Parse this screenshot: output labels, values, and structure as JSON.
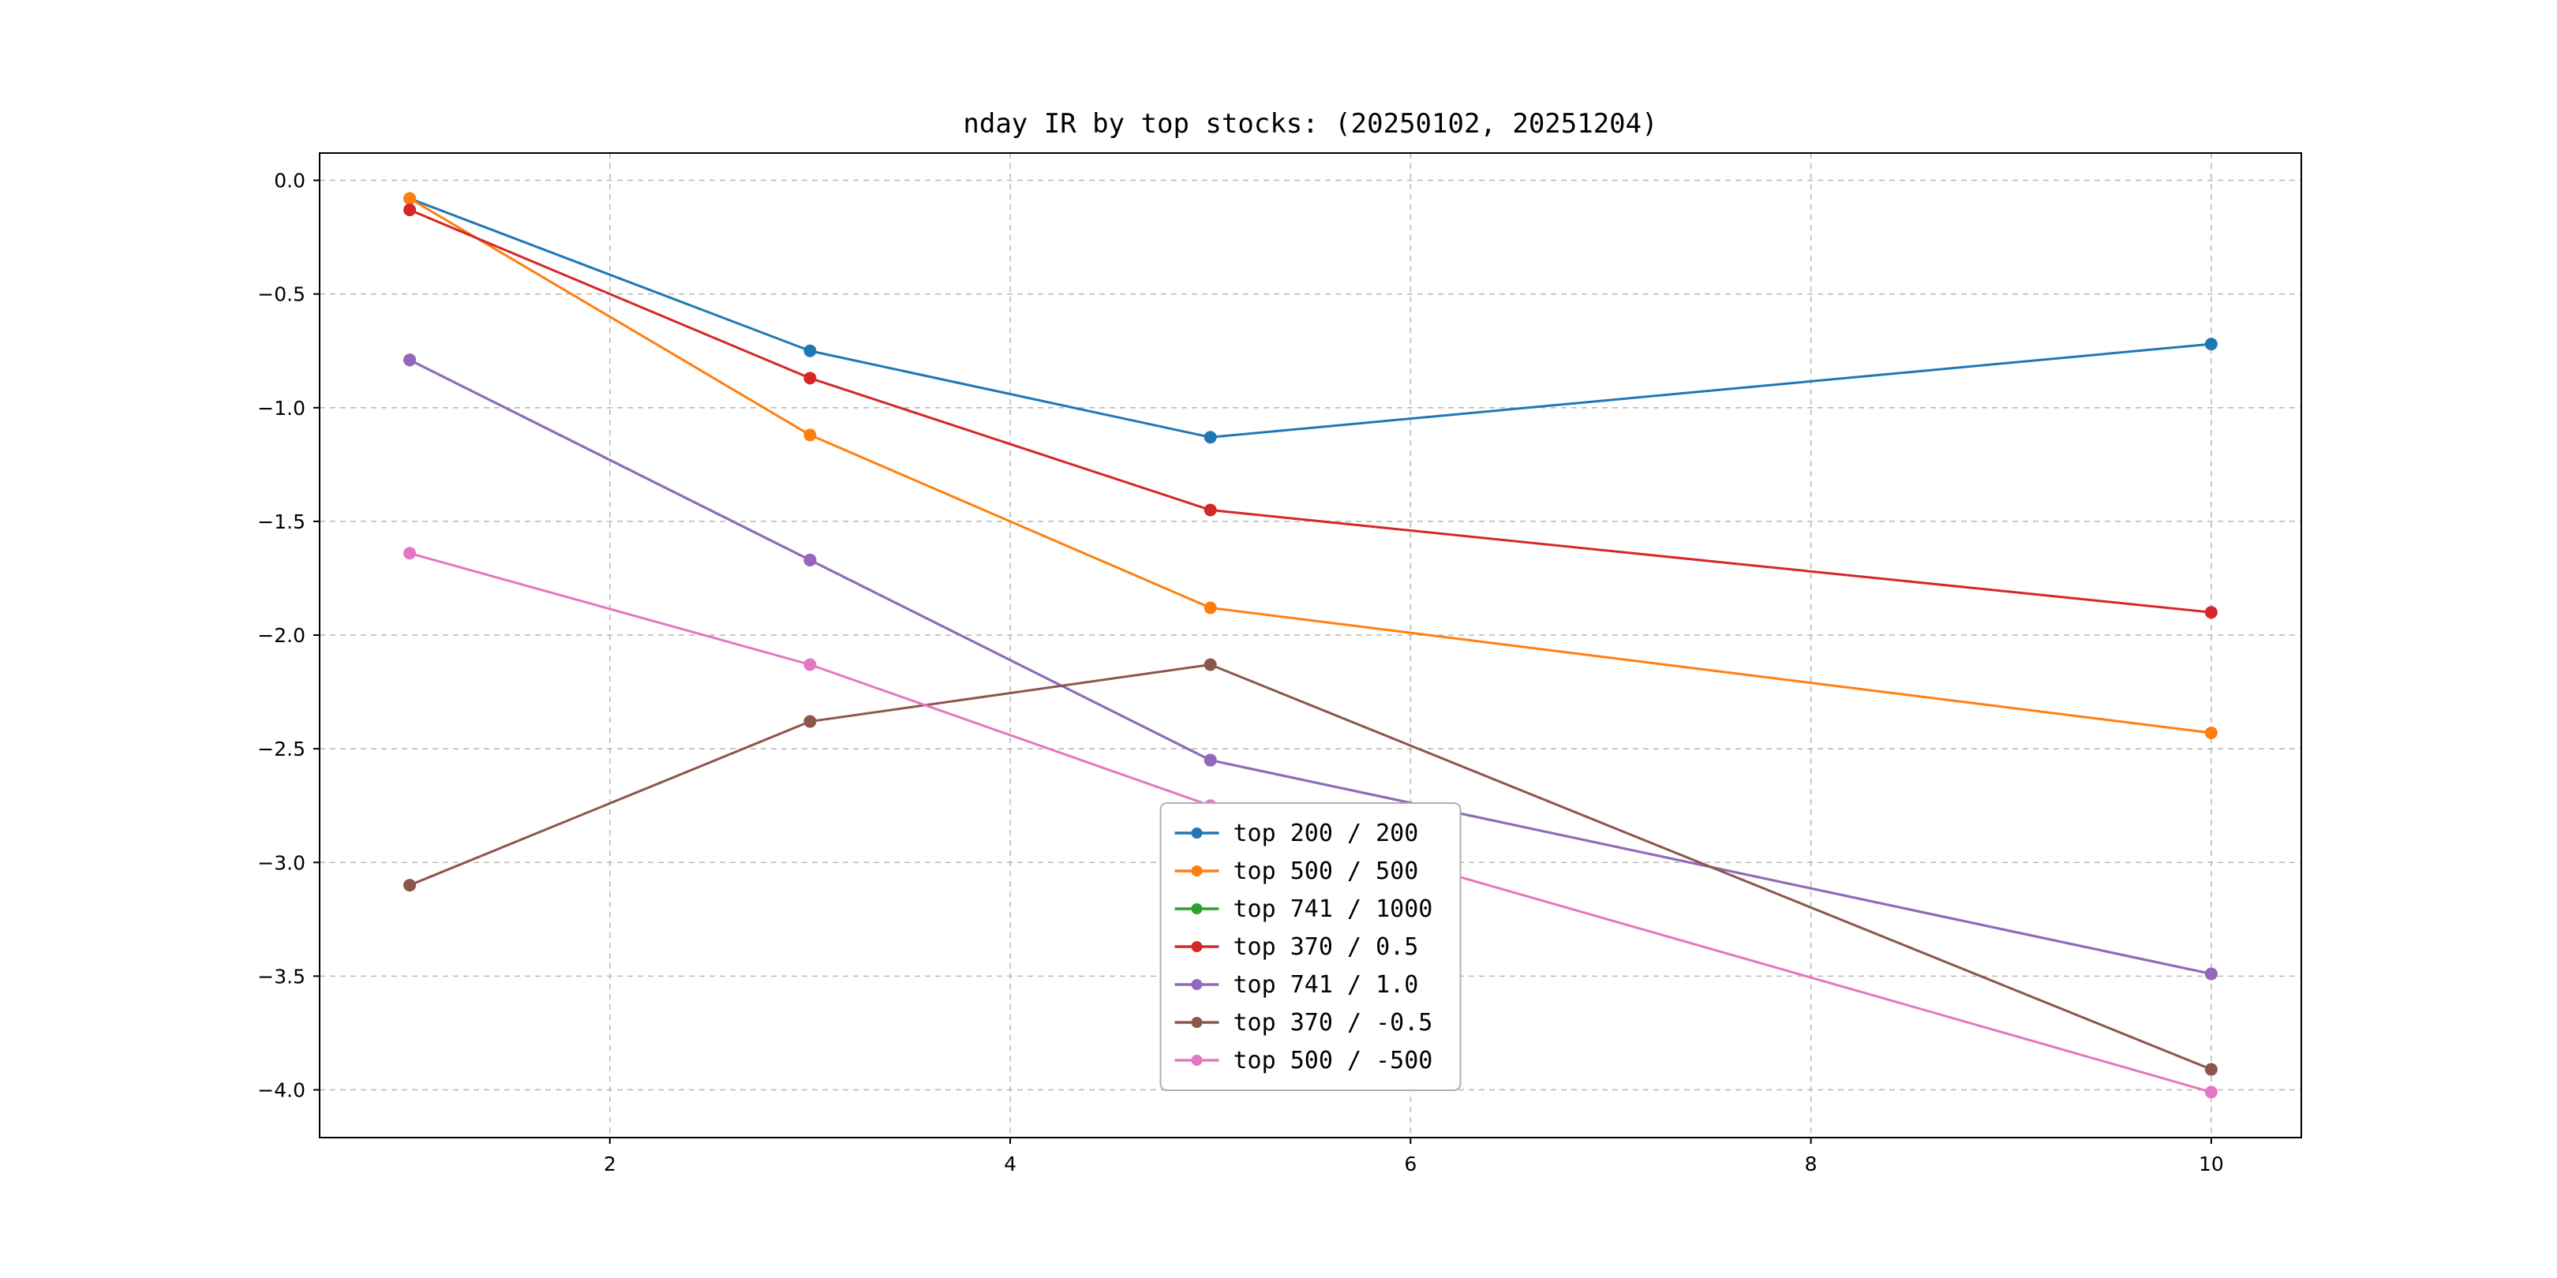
{
  "title": "nday IR by top stocks: (20250102, 20251204)",
  "chart_data": {
    "type": "line",
    "title": "nday IR by top stocks: (20250102, 20251204)",
    "xlabel": "",
    "ylabel": "",
    "x": [
      1,
      3,
      5,
      10
    ],
    "series": [
      {
        "name": "top 200 / 200",
        "color": "#1f77b4",
        "values": [
          -0.08,
          -0.75,
          -1.13,
          -0.72
        ]
      },
      {
        "name": "top 500 / 500",
        "color": "#ff7f0e",
        "values": [
          -0.08,
          -1.12,
          -1.88,
          -2.43
        ]
      },
      {
        "name": "top 741 / 1000",
        "color": "#2ca02c",
        "values": [
          -0.79,
          -1.67,
          -2.55,
          -3.49
        ]
      },
      {
        "name": "top 370 / 0.5",
        "color": "#d62728",
        "values": [
          -0.13,
          -0.87,
          -1.45,
          -1.9
        ]
      },
      {
        "name": "top 741 / 1.0",
        "color": "#9467bd",
        "values": [
          -0.79,
          -1.67,
          -2.55,
          -3.49
        ]
      },
      {
        "name": "top 370 / -0.5",
        "color": "#8c564b",
        "values": [
          -3.1,
          -2.38,
          -2.13,
          -3.91
        ]
      },
      {
        "name": "top 500 / -500",
        "color": "#e377c2",
        "values": [
          -1.64,
          -2.13,
          -2.75,
          -4.01
        ]
      }
    ],
    "xticks": [
      2,
      4,
      6,
      8,
      10
    ],
    "yticks": [
      0.0,
      -0.5,
      -1.0,
      -1.5,
      -2.0,
      -2.5,
      -3.0,
      -3.5,
      -4.0
    ],
    "xlim": [
      0.55,
      10.45
    ],
    "ylim": [
      -4.21,
      0.12
    ],
    "grid": true,
    "marker": "circle",
    "legend_position": "lower-center",
    "background": "#ffffff"
  }
}
